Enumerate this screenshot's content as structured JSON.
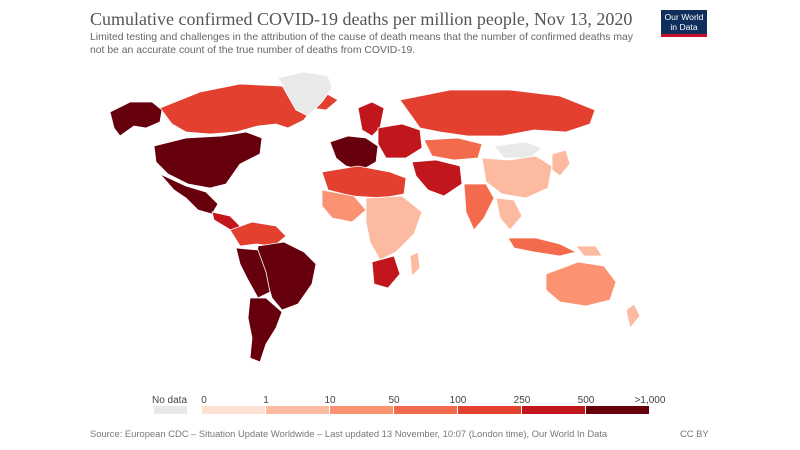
{
  "header": {
    "title": "Cumulative confirmed COVID-19 deaths per million people, Nov 13, 2020",
    "subtitle": "Limited testing and challenges in the attribution of the cause of death means that the number of confirmed deaths may not be an accurate count of the true number of deaths from COVID-19.",
    "logo_line1": "Our World",
    "logo_line2": "in Data"
  },
  "legend": {
    "no_data_label": "No data",
    "no_data_color": "#e9e9e9",
    "ticks": [
      "0",
      "1",
      "10",
      "50",
      "100",
      "250",
      "500",
      ">1,000"
    ],
    "bins": [
      {
        "from": "0",
        "to": "1",
        "color": "#fde0d2"
      },
      {
        "from": "1",
        "to": "10",
        "color": "#fcbba1"
      },
      {
        "from": "10",
        "to": "50",
        "color": "#fb9272"
      },
      {
        "from": "50",
        "to": "100",
        "color": "#f46a4d"
      },
      {
        "from": "100",
        "to": "250",
        "color": "#e3402f"
      },
      {
        "from": "250",
        "to": "500",
        "color": "#c0161c"
      },
      {
        "from": "500",
        "to": ">1,000",
        "color": "#67000d"
      }
    ]
  },
  "map": {
    "regions": [
      {
        "name": "Canada",
        "level": 4
      },
      {
        "name": "Alaska",
        "level": 6
      },
      {
        "name": "Greenland",
        "level": -1
      },
      {
        "name": "United States",
        "level": 6
      },
      {
        "name": "Mexico",
        "level": 6
      },
      {
        "name": "Central America",
        "level": 5
      },
      {
        "name": "Colombia & Venezuela",
        "level": 4
      },
      {
        "name": "Brazil",
        "level": 6
      },
      {
        "name": "Peru & Bolivia",
        "level": 6
      },
      {
        "name": "Argentina & Chile",
        "level": 6
      },
      {
        "name": "Western Europe",
        "level": 6
      },
      {
        "name": "Scandinavia",
        "level": 5
      },
      {
        "name": "Eastern Europe",
        "level": 5
      },
      {
        "name": "Russia",
        "level": 4
      },
      {
        "name": "Kazakhstan",
        "level": 3
      },
      {
        "name": "Mongolia",
        "level": -1
      },
      {
        "name": "China",
        "level": 1
      },
      {
        "name": "Middle East",
        "level": 5
      },
      {
        "name": "India",
        "level": 3
      },
      {
        "name": "Southeast Asia",
        "level": 1
      },
      {
        "name": "Indonesia",
        "level": 3
      },
      {
        "name": "Japan & Korea",
        "level": 1
      },
      {
        "name": "North Africa",
        "level": 4
      },
      {
        "name": "West Africa",
        "level": 2
      },
      {
        "name": "Central & East Africa",
        "level": 1
      },
      {
        "name": "South Africa",
        "level": 5
      },
      {
        "name": "Madagascar",
        "level": 1
      },
      {
        "name": "Australia",
        "level": 2
      },
      {
        "name": "New Zealand",
        "level": 1
      },
      {
        "name": "Papua New Guinea",
        "level": 1
      }
    ]
  },
  "footer": {
    "source": "Source: European CDC – Situation Update Worldwide – Last updated 13 November, 10:07 (London time), Our World In Data",
    "license": "CC BY"
  }
}
